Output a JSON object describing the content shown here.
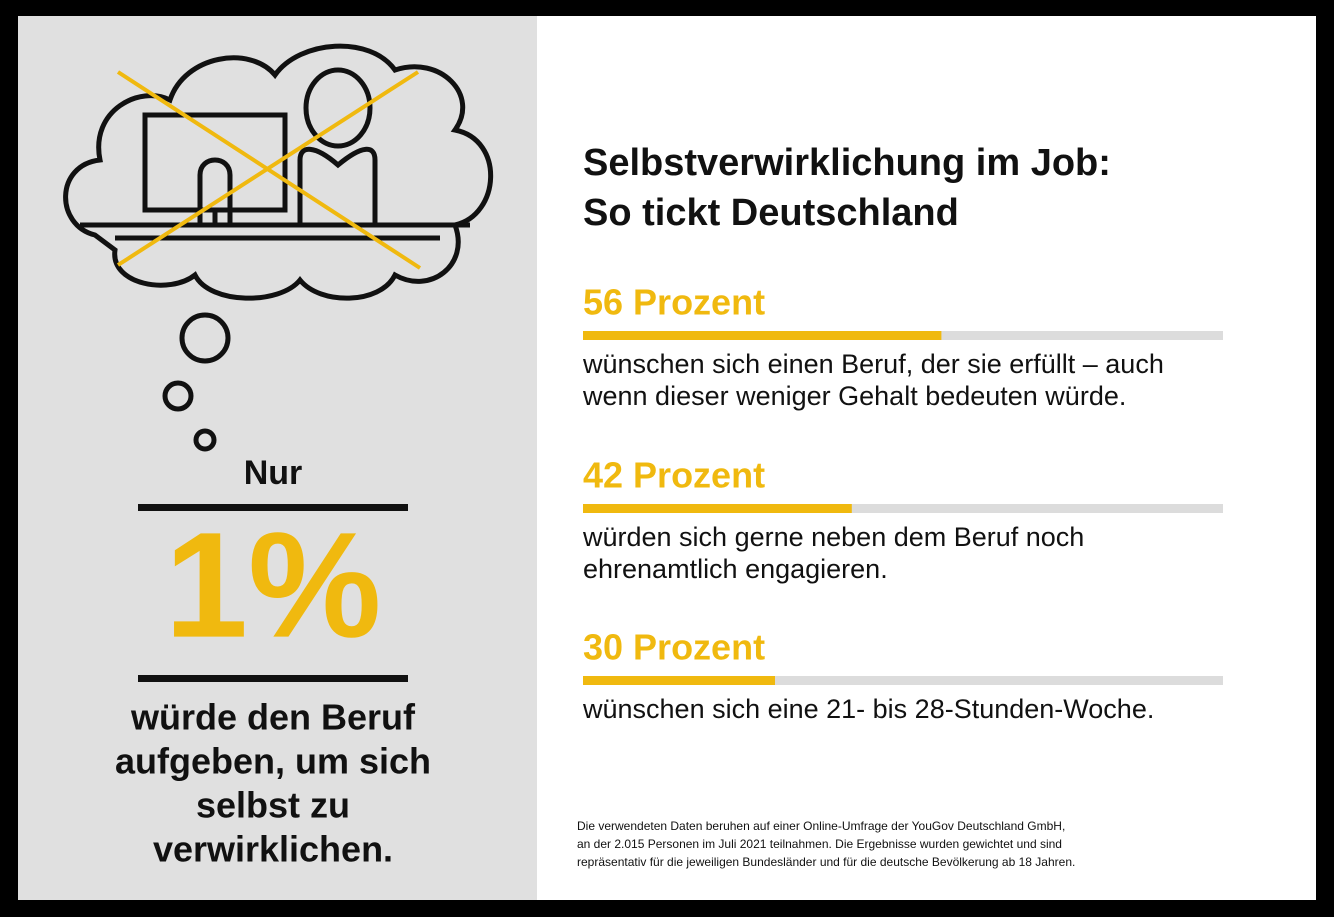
{
  "left": {
    "intro": "Nur",
    "highlight": "1%",
    "lines": [
      "würde den Beruf",
      "aufgeben, um sich",
      "selbst zu",
      "verwirklichen."
    ]
  },
  "title": [
    "Selbstverwirklichung im Job:",
    "So tickt Deutschland"
  ],
  "xlim": [
    0,
    100
  ],
  "items": [
    {
      "value": 56,
      "label": "56 Prozent",
      "lines": [
        "wünschen sich einen Beruf, der sie erfüllt – auch",
        "wenn dieser weniger Gehalt bedeuten würde."
      ]
    },
    {
      "value": 42,
      "label": "42 Prozent",
      "lines": [
        "würden sich gerne neben dem Beruf noch",
        "ehrenamtlich engagieren."
      ]
    },
    {
      "value": 30,
      "label": "30 Prozent",
      "lines": [
        "wünschen sich eine 21- bis 28-Stunden-Woche."
      ]
    }
  ],
  "footnote": [
    "Die verwendeten Daten beruhen auf einer Online-Umfrage der YouGov Deutschland GmbH,",
    "an der 2.015 Personen im Juli 2021 teilnahmen. Die Ergebnisse wurden gewichtet und sind",
    "repräsentativ für die jeweiligen Bundesländer und für die deutsche Bevölkerung ab 18 Jahren."
  ]
}
